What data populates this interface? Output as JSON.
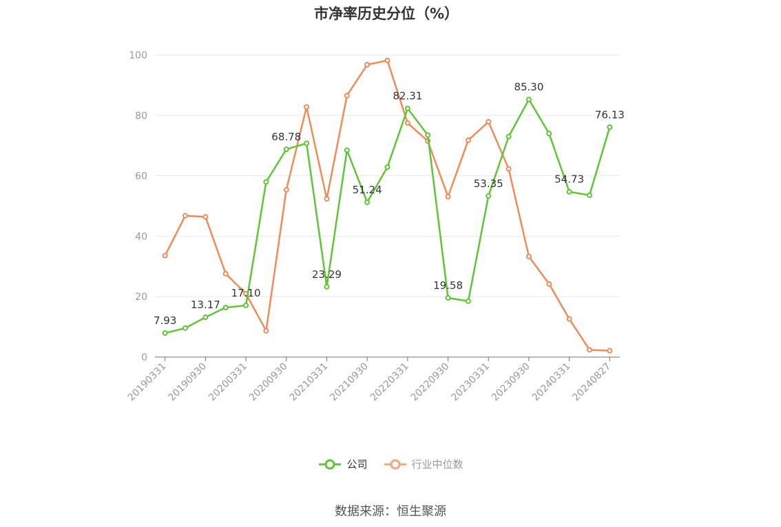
{
  "title": "市净率历史分位（%）",
  "source": "数据来源：恒生聚源",
  "legend": [
    {
      "label": "公司",
      "color": "#5ec536",
      "text_color": "#333333"
    },
    {
      "label": "行业中位数",
      "color": "#f5a381",
      "text_color": "#999999"
    }
  ],
  "colors": {
    "company": "#5ec536",
    "industry": "#f08a57",
    "grid": "#e6e8ef",
    "axis": "#999999"
  },
  "chart_data": {
    "type": "line",
    "x": [
      "20190331",
      "20190630",
      "20190930",
      "20191231",
      "20200331",
      "20200630",
      "20200930",
      "20201231",
      "20210331",
      "20210630",
      "20210930",
      "20211231",
      "20220331",
      "20220630",
      "20220930",
      "20221231",
      "20230331",
      "20230630",
      "20230930",
      "20231231",
      "20240331",
      "20240630",
      "20240827"
    ],
    "x_tick_labels": [
      "20190331",
      "20190930",
      "20200331",
      "20200930",
      "20210331",
      "20210930",
      "20220331",
      "20220930",
      "20230331",
      "20230930",
      "20240331",
      "20240827"
    ],
    "ylim": [
      0,
      100
    ],
    "y_ticks": [
      0,
      20,
      40,
      60,
      80,
      100
    ],
    "grid": true,
    "legend_position": "bottom",
    "series": [
      {
        "name": "公司",
        "values": [
          7.93,
          9.6,
          13.17,
          16.4,
          17.1,
          58.0,
          68.78,
          70.8,
          23.29,
          68.5,
          51.24,
          62.9,
          82.31,
          73.5,
          19.58,
          18.5,
          53.35,
          73.0,
          85.3,
          74.0,
          54.73,
          53.6,
          76.13
        ],
        "labels": [
          "7.93",
          "",
          "13.17",
          "",
          "17.10",
          "",
          "68.78",
          "",
          "23.29",
          "",
          "51.24",
          "",
          "82.31",
          "",
          "19.58",
          "",
          "53.35",
          "",
          "85.30",
          "",
          "54.73",
          "",
          "76.13"
        ]
      },
      {
        "name": "行业中位数",
        "values": [
          33.6,
          46.8,
          46.4,
          27.6,
          21.0,
          8.7,
          55.4,
          82.8,
          52.4,
          86.6,
          96.8,
          98.2,
          77.5,
          71.5,
          53.1,
          71.8,
          77.9,
          62.3,
          33.3,
          24.2,
          12.6,
          2.4,
          2.1
        ]
      }
    ]
  }
}
